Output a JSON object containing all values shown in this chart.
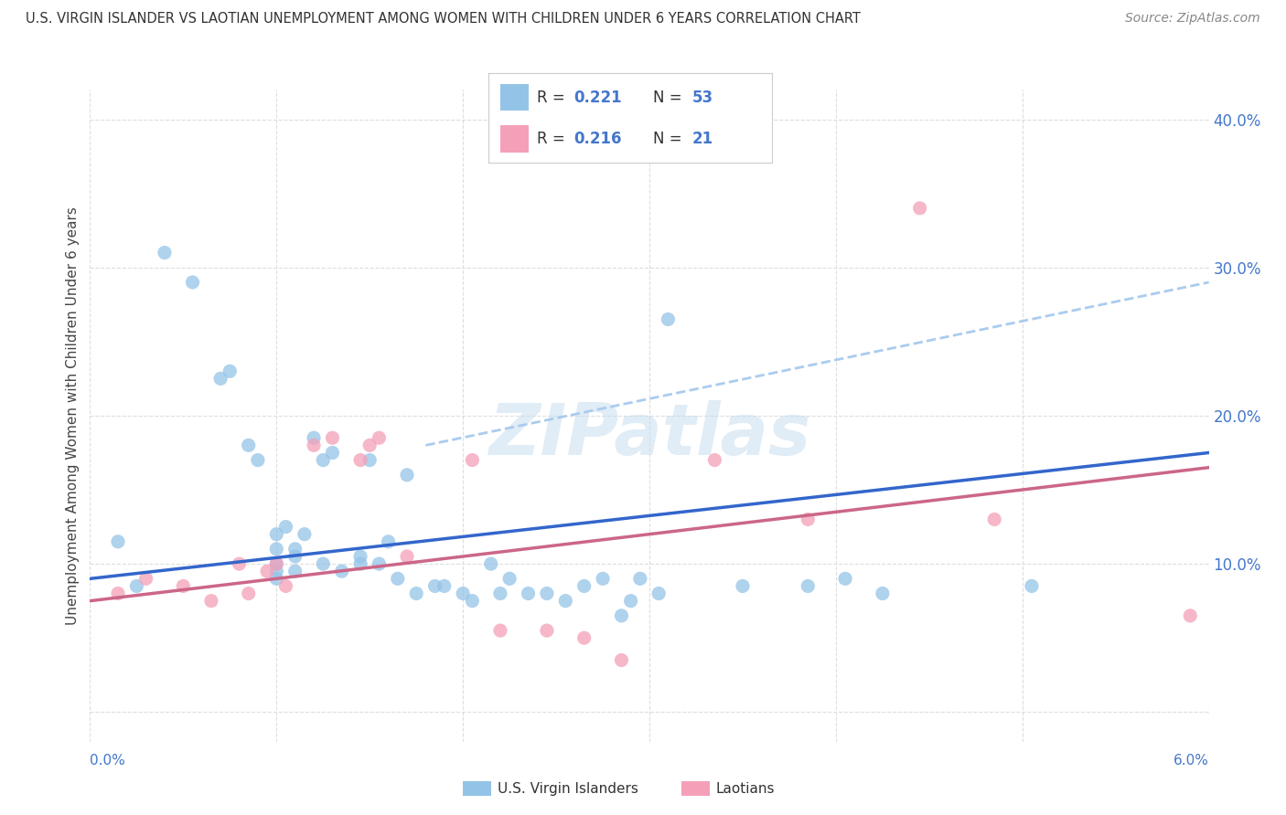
{
  "title": "U.S. VIRGIN ISLANDER VS LAOTIAN UNEMPLOYMENT AMONG WOMEN WITH CHILDREN UNDER 6 YEARS CORRELATION CHART",
  "source": "Source: ZipAtlas.com",
  "ylabel": "Unemployment Among Women with Children Under 6 years",
  "xlim": [
    0.0,
    6.0
  ],
  "ylim": [
    -2.0,
    42.0
  ],
  "yticks": [
    0,
    10,
    20,
    30,
    40
  ],
  "ytick_labels": [
    "",
    "10.0%",
    "20.0%",
    "30.0%",
    "40.0%"
  ],
  "xticks": [
    0,
    1,
    2,
    3,
    4,
    5,
    6
  ],
  "legend_r1": "0.221",
  "legend_n1": "53",
  "legend_r2": "0.216",
  "legend_n2": "21",
  "color_blue": "#94C3E8",
  "color_pink": "#F4A0B8",
  "color_blue_text": "#4477CC",
  "trend_blue": "#3366CC",
  "trend_pink": "#CC6688",
  "trend_dashed_color": "#AACCEE",
  "blue_scatter": [
    [
      0.15,
      11.5
    ],
    [
      0.25,
      8.5
    ],
    [
      0.4,
      31.0
    ],
    [
      0.55,
      29.0
    ],
    [
      0.7,
      22.5
    ],
    [
      0.75,
      23.0
    ],
    [
      0.85,
      18.0
    ],
    [
      0.9,
      17.0
    ],
    [
      1.0,
      11.0
    ],
    [
      1.0,
      12.0
    ],
    [
      1.0,
      10.0
    ],
    [
      1.0,
      9.5
    ],
    [
      1.0,
      9.0
    ],
    [
      1.05,
      12.5
    ],
    [
      1.1,
      10.5
    ],
    [
      1.1,
      9.5
    ],
    [
      1.1,
      11.0
    ],
    [
      1.15,
      12.0
    ],
    [
      1.2,
      18.5
    ],
    [
      1.25,
      17.0
    ],
    [
      1.25,
      10.0
    ],
    [
      1.3,
      17.5
    ],
    [
      1.35,
      9.5
    ],
    [
      1.45,
      10.5
    ],
    [
      1.45,
      10.0
    ],
    [
      1.5,
      17.0
    ],
    [
      1.55,
      10.0
    ],
    [
      1.6,
      11.5
    ],
    [
      1.65,
      9.0
    ],
    [
      1.7,
      16.0
    ],
    [
      1.75,
      8.0
    ],
    [
      1.85,
      8.5
    ],
    [
      1.9,
      8.5
    ],
    [
      2.0,
      8.0
    ],
    [
      2.05,
      7.5
    ],
    [
      2.15,
      10.0
    ],
    [
      2.2,
      8.0
    ],
    [
      2.25,
      9.0
    ],
    [
      2.35,
      8.0
    ],
    [
      2.45,
      8.0
    ],
    [
      2.55,
      7.5
    ],
    [
      2.65,
      8.5
    ],
    [
      2.75,
      9.0
    ],
    [
      2.85,
      6.5
    ],
    [
      2.9,
      7.5
    ],
    [
      2.95,
      9.0
    ],
    [
      3.05,
      8.0
    ],
    [
      3.1,
      26.5
    ],
    [
      3.5,
      8.5
    ],
    [
      3.85,
      8.5
    ],
    [
      4.05,
      9.0
    ],
    [
      4.25,
      8.0
    ],
    [
      5.05,
      8.5
    ]
  ],
  "pink_scatter": [
    [
      0.15,
      8.0
    ],
    [
      0.3,
      9.0
    ],
    [
      0.5,
      8.5
    ],
    [
      0.65,
      7.5
    ],
    [
      0.8,
      10.0
    ],
    [
      0.85,
      8.0
    ],
    [
      0.95,
      9.5
    ],
    [
      1.0,
      10.0
    ],
    [
      1.05,
      8.5
    ],
    [
      1.2,
      18.0
    ],
    [
      1.3,
      18.5
    ],
    [
      1.45,
      17.0
    ],
    [
      1.5,
      18.0
    ],
    [
      1.55,
      18.5
    ],
    [
      1.7,
      10.5
    ],
    [
      2.05,
      17.0
    ],
    [
      2.2,
      5.5
    ],
    [
      2.45,
      5.5
    ],
    [
      2.65,
      5.0
    ],
    [
      2.85,
      3.5
    ],
    [
      3.35,
      17.0
    ],
    [
      3.85,
      13.0
    ],
    [
      4.45,
      34.0
    ],
    [
      4.85,
      13.0
    ],
    [
      5.9,
      6.5
    ]
  ],
  "blue_trend": [
    0.0,
    6.0,
    9.0,
    17.5
  ],
  "pink_trend": [
    0.0,
    6.0,
    7.5,
    16.5
  ],
  "dashed_trend": [
    1.8,
    6.0,
    18.0,
    29.0
  ],
  "watermark_text": "ZIPatlas",
  "background_color": "#FFFFFF",
  "grid_color": "#DDDDDD"
}
